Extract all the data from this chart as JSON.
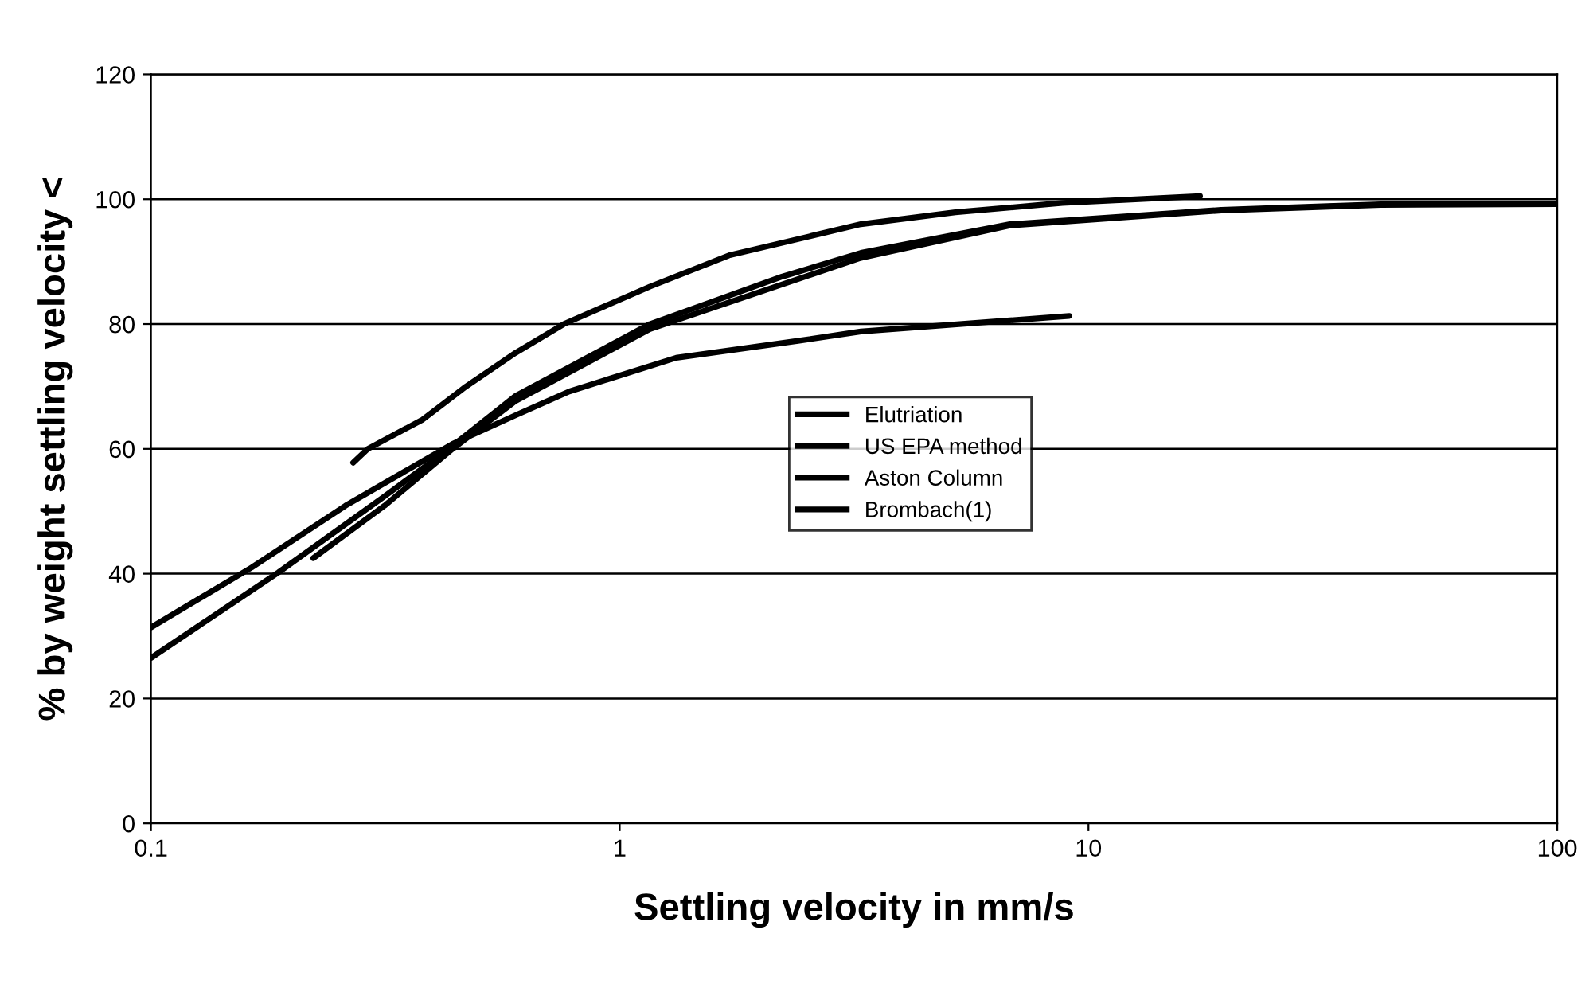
{
  "chart_data": {
    "type": "line",
    "xlabel": "Settling velocity in mm/s",
    "ylabel": "% by weight settling velocity <",
    "log": "x",
    "xlim": [
      0.1,
      100
    ],
    "xticks": [
      0.1,
      1,
      10,
      100
    ],
    "ylim": [
      0,
      120
    ],
    "yticks": [
      0,
      20,
      40,
      60,
      80,
      100,
      120
    ],
    "grid": "y",
    "legend": "center",
    "marker": "none",
    "line_style": "solid",
    "series": [
      {
        "name": "Elutriation",
        "color": "#000000",
        "x": [
          0.1,
          0.164,
          0.26,
          0.44,
          0.6,
          0.78,
          1.32,
          2.4,
          3.27,
          9.1
        ],
        "values": [
          31.4,
          41,
          50.9,
          60.8,
          65.4,
          69.2,
          74.6,
          77.3,
          78.8,
          81.3
        ]
      },
      {
        "name": "US EPA method",
        "color": "#000000",
        "x": [
          0.1,
          0.187,
          0.315,
          0.42,
          0.6,
          1.16,
          2.22,
          3.27,
          6.8,
          19.2,
          42,
          100
        ],
        "values": [
          26.5,
          40.2,
          52.4,
          59.3,
          68.5,
          80,
          87.6,
          91.4,
          96,
          98.3,
          99.2,
          99.2
        ]
      },
      {
        "name": "Aston Column",
        "color": "#000000",
        "x": [
          0.222,
          0.315,
          0.44,
          0.6,
          1.16,
          3.27,
          6.8,
          19.2,
          42,
          100
        ],
        "values": [
          42.5,
          50.9,
          60,
          67.7,
          79.2,
          90.6,
          95.8,
          98.2,
          99.1,
          99.2
        ]
      },
      {
        "name": "Brombach(1)",
        "color": "#000000",
        "x": [
          0.27,
          0.29,
          0.38,
          0.47,
          0.6,
          0.76,
          1.16,
          1.71,
          3.27,
          5.2,
          8.8,
          17.3
        ],
        "values": [
          57.8,
          60,
          64.7,
          70,
          75.4,
          80,
          86,
          91,
          96,
          97.9,
          99.4,
          100.5
        ]
      }
    ]
  }
}
